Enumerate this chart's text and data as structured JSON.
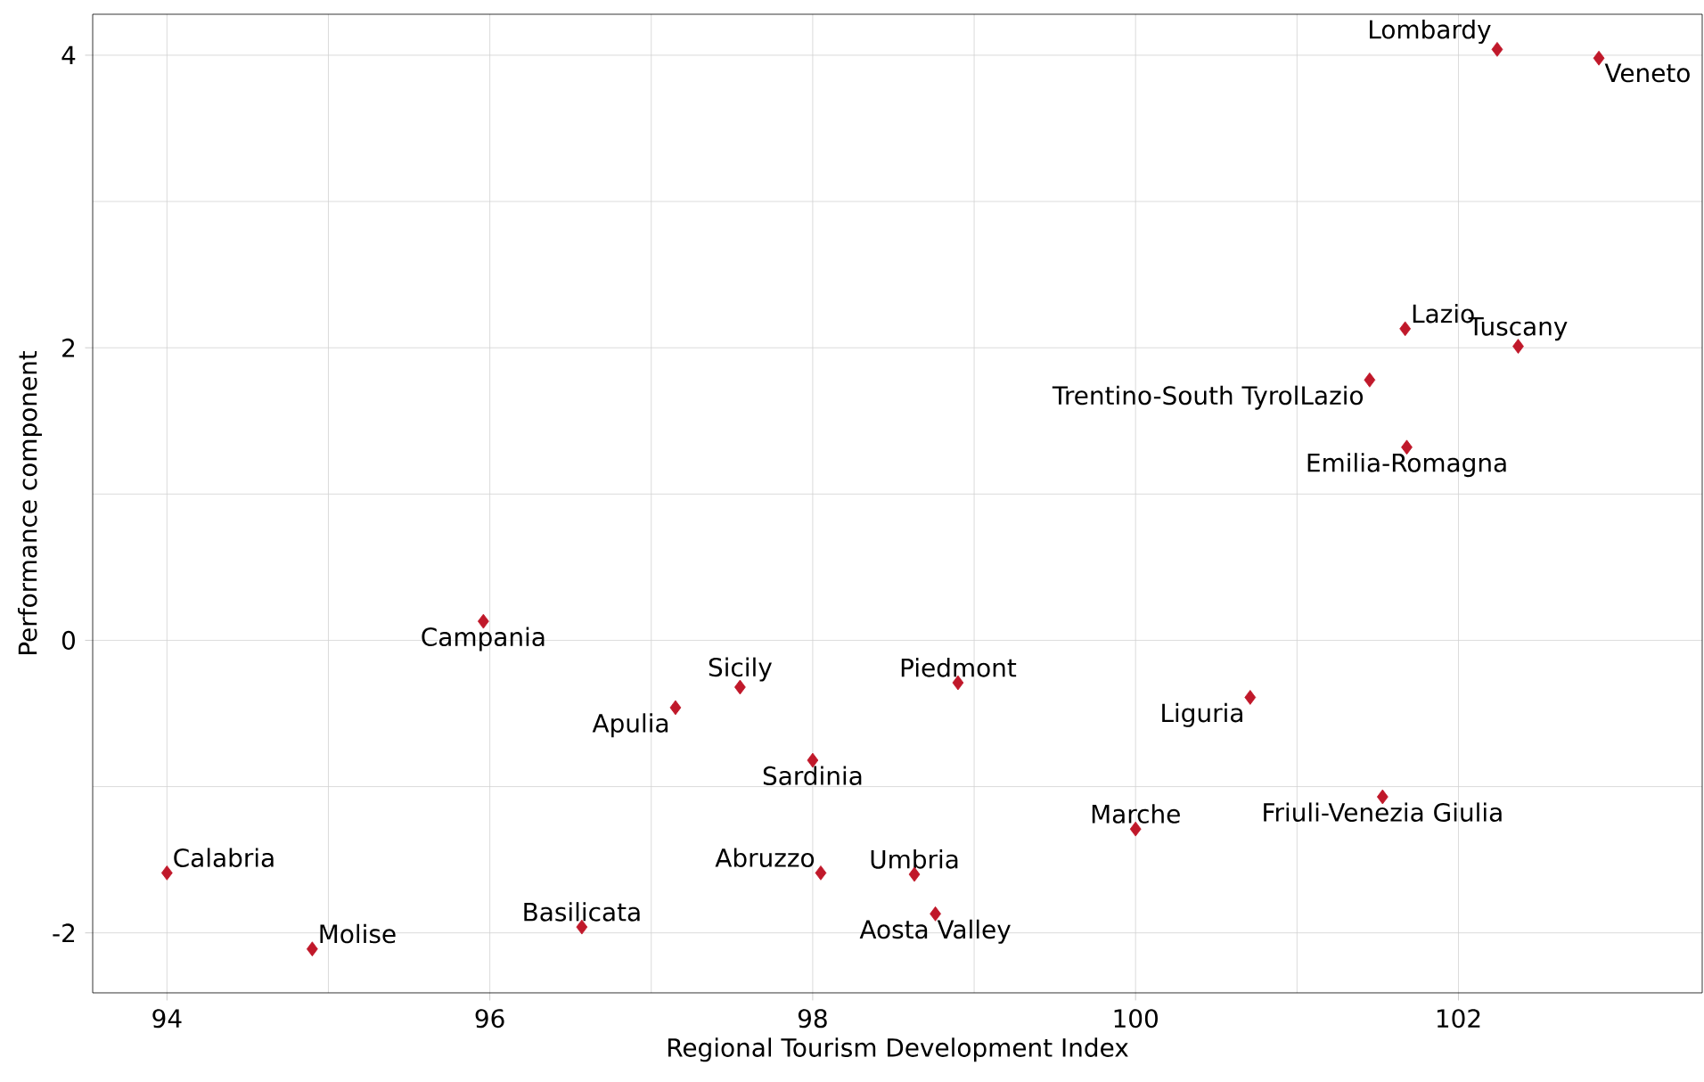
{
  "chart_data": {
    "type": "scatter",
    "xlabel": "Regional Tourism Development Index",
    "ylabel": "Performance component",
    "x": [
      102.24,
      102.87,
      101.67,
      102.37,
      101.45,
      101.68,
      95.96,
      97.55,
      98.9,
      97.15,
      100.71,
      98.0,
      100.0,
      101.53,
      94.0,
      98.05,
      98.63,
      98.76,
      96.57,
      94.9
    ],
    "series": [
      {
        "color": "#c0182a",
        "values": [
          4.04,
          3.98,
          2.13,
          2.01,
          1.78,
          1.32,
          0.13,
          -0.32,
          -0.29,
          -0.46,
          -0.39,
          -0.82,
          -1.29,
          -1.07,
          -1.59,
          -1.59,
          -1.6,
          -1.87,
          -1.96,
          -2.11
        ]
      }
    ],
    "annotations": [
      {
        "text": "Lombardy",
        "x": 102.24,
        "y": 4.04
      },
      {
        "text": "Veneto",
        "x": 102.87,
        "y": 3.98
      },
      {
        "text": "Lazio",
        "x": 101.67,
        "y": 2.13
      },
      {
        "text": "Tuscany",
        "x": 102.37,
        "y": 2.01
      },
      {
        "text": "Trentino-South TyrolLazio",
        "x": 101.45,
        "y": 1.78
      },
      {
        "text": "Emilia-Romagna",
        "x": 101.68,
        "y": 1.32
      },
      {
        "text": "Campania",
        "x": 95.96,
        "y": 0.13
      },
      {
        "text": "Sicily",
        "x": 97.55,
        "y": -0.32
      },
      {
        "text": "Piedmont",
        "x": 98.9,
        "y": -0.29
      },
      {
        "text": "Apulia",
        "x": 97.15,
        "y": -0.46
      },
      {
        "text": "Liguria",
        "x": 100.71,
        "y": -0.39
      },
      {
        "text": "Sardinia",
        "x": 98.0,
        "y": -0.82
      },
      {
        "text": "Marche",
        "x": 100.0,
        "y": -1.29
      },
      {
        "text": "Friuli-Venezia Giulia",
        "x": 101.53,
        "y": -1.07
      },
      {
        "text": "Calabria",
        "x": 94.0,
        "y": -1.59
      },
      {
        "text": "Abruzzo",
        "x": 98.05,
        "y": -1.59
      },
      {
        "text": "Umbria",
        "x": 98.63,
        "y": -1.6
      },
      {
        "text": "Aosta Valley",
        "x": 98.76,
        "y": -1.87
      },
      {
        "text": "Basilicata",
        "x": 96.57,
        "y": -1.96
      },
      {
        "text": "Molise",
        "x": 94.9,
        "y": -2.11
      }
    ],
    "xlim": [
      93.54,
      103.51
    ],
    "ylim": [
      -2.41,
      4.28
    ],
    "xticks": [
      94,
      96,
      98,
      100,
      102
    ],
    "yticks": [
      -2,
      0,
      2,
      4
    ],
    "grid": true,
    "marker": "diamond"
  }
}
